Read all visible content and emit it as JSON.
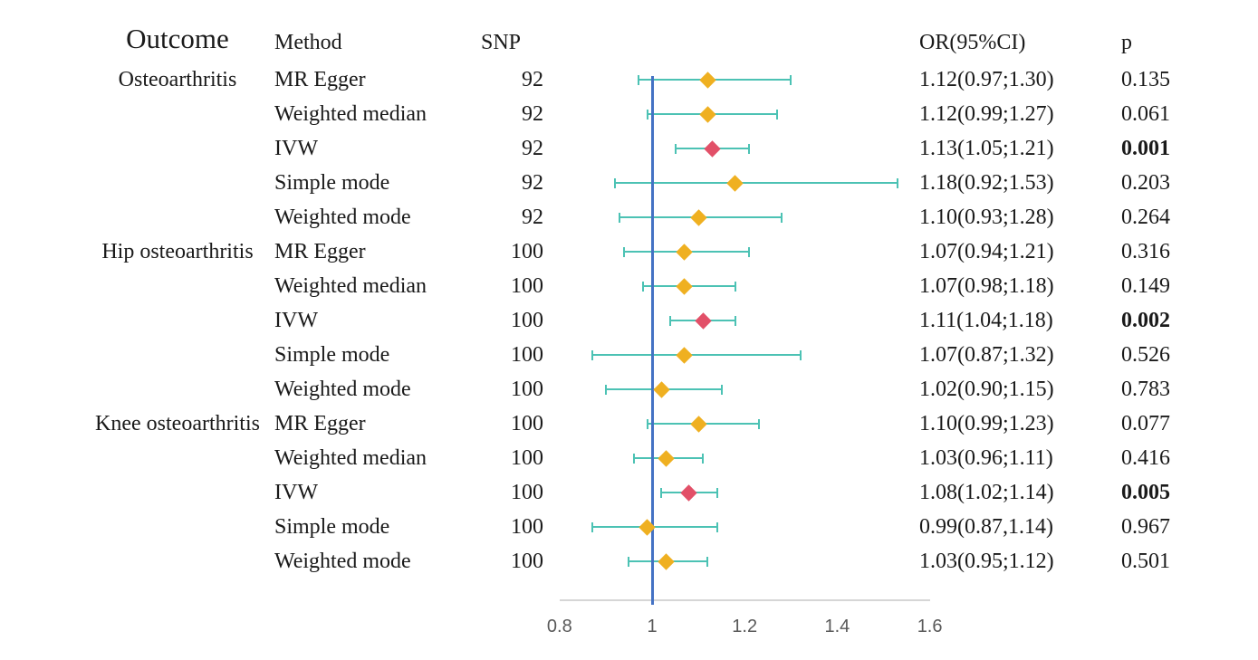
{
  "headers": {
    "outcome": "Outcome",
    "method": "Method",
    "snp": "SNP",
    "or": "OR(95%CI)",
    "p": "p"
  },
  "colors": {
    "marker_default": "#EFB021",
    "marker_ivw": "#E25068",
    "ci_bar": "#4CC2B4",
    "reference_line": "#4472C4",
    "axis_line": "#D6D6D6",
    "tick_text": "#595959",
    "text": "#1A1A1A"
  },
  "chart_data": {
    "type": "forest",
    "title": "",
    "xlabel": "",
    "ylabel": "",
    "columns": [
      "Outcome",
      "Method",
      "SNP",
      "OR(95%CI)",
      "p"
    ],
    "x_axis": {
      "range": [
        0.8,
        1.6
      ],
      "ticks": [
        0.8,
        1.0,
        1.2,
        1.4,
        1.6
      ],
      "tick_labels": [
        "0.8",
        "1",
        "1.2",
        "1.4",
        "1.6"
      ],
      "reference_line": 1.0
    },
    "rows": [
      {
        "outcome": "Osteoarthritis",
        "method": "MR Egger",
        "snp": "92",
        "or": 1.12,
        "ci_low": 0.97,
        "ci_high": 1.3,
        "or_text": "1.12(0.97;1.30)",
        "p": "0.135",
        "significant": false
      },
      {
        "outcome": "",
        "method": "Weighted median",
        "snp": "92",
        "or": 1.12,
        "ci_low": 0.99,
        "ci_high": 1.27,
        "or_text": "1.12(0.99;1.27)",
        "p": "0.061",
        "significant": false
      },
      {
        "outcome": "",
        "method": "IVW",
        "snp": "92",
        "or": 1.13,
        "ci_low": 1.05,
        "ci_high": 1.21,
        "or_text": "1.13(1.05;1.21)",
        "p": "0.001",
        "significant": true
      },
      {
        "outcome": "",
        "method": "Simple mode",
        "snp": "92",
        "or": 1.18,
        "ci_low": 0.92,
        "ci_high": 1.53,
        "or_text": "1.18(0.92;1.53)",
        "p": "0.203",
        "significant": false
      },
      {
        "outcome": "",
        "method": "Weighted mode",
        "snp": "92",
        "or": 1.1,
        "ci_low": 0.93,
        "ci_high": 1.28,
        "or_text": "1.10(0.93;1.28)",
        "p": "0.264",
        "significant": false
      },
      {
        "outcome": "Hip osteoarthritis",
        "method": "MR Egger",
        "snp": "100",
        "or": 1.07,
        "ci_low": 0.94,
        "ci_high": 1.21,
        "or_text": "1.07(0.94;1.21)",
        "p": "0.316",
        "significant": false
      },
      {
        "outcome": "",
        "method": "Weighted median",
        "snp": "100",
        "or": 1.07,
        "ci_low": 0.98,
        "ci_high": 1.18,
        "or_text": "1.07(0.98;1.18)",
        "p": "0.149",
        "significant": false
      },
      {
        "outcome": "",
        "method": "IVW",
        "snp": "100",
        "or": 1.11,
        "ci_low": 1.04,
        "ci_high": 1.18,
        "or_text": "1.11(1.04;1.18)",
        "p": "0.002",
        "significant": true
      },
      {
        "outcome": "",
        "method": "Simple mode",
        "snp": "100",
        "or": 1.07,
        "ci_low": 0.87,
        "ci_high": 1.32,
        "or_text": "1.07(0.87;1.32)",
        "p": "0.526",
        "significant": false
      },
      {
        "outcome": "",
        "method": "Weighted mode",
        "snp": "100",
        "or": 1.02,
        "ci_low": 0.9,
        "ci_high": 1.15,
        "or_text": "1.02(0.90;1.15)",
        "p": "0.783",
        "significant": false
      },
      {
        "outcome": "Knee osteoarthritis",
        "method": "MR Egger",
        "snp": "100",
        "or": 1.1,
        "ci_low": 0.99,
        "ci_high": 1.23,
        "or_text": "1.10(0.99;1.23)",
        "p": "0.077",
        "significant": false
      },
      {
        "outcome": "",
        "method": "Weighted median",
        "snp": "100",
        "or": 1.03,
        "ci_low": 0.96,
        "ci_high": 1.11,
        "or_text": "1.03(0.96;1.11)",
        "p": "0.416",
        "significant": false
      },
      {
        "outcome": "",
        "method": "IVW",
        "snp": "100",
        "or": 1.08,
        "ci_low": 1.02,
        "ci_high": 1.14,
        "or_text": "1.08(1.02;1.14)",
        "p": "0.005",
        "significant": true
      },
      {
        "outcome": "",
        "method": "Simple mode",
        "snp": "100",
        "or": 0.99,
        "ci_low": 0.87,
        "ci_high": 1.14,
        "or_text": "0.99(0.87,1.14)",
        "p": "0.967",
        "significant": false
      },
      {
        "outcome": "",
        "method": "Weighted mode",
        "snp": "100",
        "or": 1.03,
        "ci_low": 0.95,
        "ci_high": 1.12,
        "or_text": "1.03(0.95;1.12)",
        "p": "0.501",
        "significant": false
      }
    ]
  }
}
